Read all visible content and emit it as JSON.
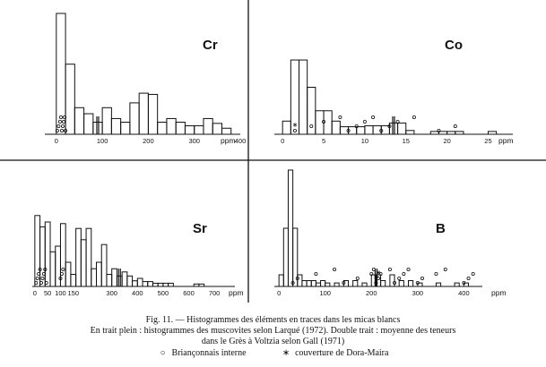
{
  "colors": {
    "ink": "#111111",
    "paper": "#ffffff"
  },
  "chart_data": [
    {
      "type": "histogram",
      "element": "Cr",
      "unit": "ppm",
      "xlim": [
        -25,
        400
      ],
      "ylim": [
        0,
        100
      ],
      "ticks": [
        0,
        100,
        200,
        300,
        400
      ],
      "bins": [
        [
          0,
          20,
          100
        ],
        [
          20,
          40,
          58
        ],
        [
          40,
          60,
          22
        ],
        [
          60,
          80,
          17
        ],
        [
          80,
          100,
          10
        ],
        [
          100,
          120,
          22
        ],
        [
          120,
          140,
          13
        ],
        [
          140,
          160,
          10
        ],
        [
          160,
          180,
          26
        ],
        [
          180,
          200,
          34
        ],
        [
          200,
          220,
          33
        ],
        [
          220,
          240,
          10
        ],
        [
          240,
          260,
          13
        ],
        [
          260,
          280,
          10
        ],
        [
          280,
          300,
          7
        ],
        [
          300,
          320,
          7
        ],
        [
          320,
          340,
          13
        ],
        [
          340,
          360,
          9
        ],
        [
          360,
          380,
          5
        ]
      ],
      "mean_line": 90,
      "brianconnais_points": [
        2,
        5,
        8,
        10,
        12,
        14,
        16,
        18,
        20
      ]
    },
    {
      "type": "histogram",
      "element": "Co",
      "unit": "ppm",
      "xlim": [
        -1,
        28
      ],
      "ylim": [
        0,
        100
      ],
      "ticks": [
        0,
        5,
        10,
        15,
        20,
        25
      ],
      "bins": [
        [
          0,
          1,
          14
        ],
        [
          1,
          2,
          79
        ],
        [
          2,
          3,
          79
        ],
        [
          3,
          4,
          50
        ],
        [
          4,
          5,
          25
        ],
        [
          5,
          6,
          25
        ],
        [
          6,
          7,
          14
        ],
        [
          7,
          8,
          8
        ],
        [
          8,
          9,
          8
        ],
        [
          9,
          10,
          8
        ],
        [
          10,
          11,
          9
        ],
        [
          11,
          12,
          9
        ],
        [
          12,
          13,
          9
        ],
        [
          13,
          14,
          12
        ],
        [
          14,
          15,
          12
        ],
        [
          15,
          16,
          4
        ],
        [
          18,
          19,
          3
        ],
        [
          19,
          20,
          3
        ],
        [
          20,
          21,
          3
        ],
        [
          21,
          22,
          3
        ],
        [
          25,
          26,
          3
        ]
      ],
      "mean_line": 13.5,
      "brianconnais_points": [
        1.5,
        3.5,
        5,
        7,
        8,
        9,
        10,
        11,
        12,
        13,
        14,
        16,
        19,
        21
      ],
      "dora_maira_points": [
        1.5
      ]
    },
    {
      "type": "histogram",
      "element": "Sr",
      "unit": "ppm",
      "xlim": [
        -10,
        780
      ],
      "ylim": [
        0,
        100
      ],
      "ticks": [
        0,
        50,
        100,
        150,
        300,
        400,
        500,
        600,
        700
      ],
      "tick_labels": [
        "0",
        "50",
        "100",
        "150",
        "300",
        "400",
        "500",
        "600",
        "700"
      ],
      "bins": [
        [
          0,
          20,
          88
        ],
        [
          20,
          40,
          74
        ],
        [
          40,
          60,
          80
        ],
        [
          60,
          80,
          43
        ],
        [
          80,
          100,
          50
        ],
        [
          100,
          120,
          78
        ],
        [
          120,
          140,
          30
        ],
        [
          140,
          160,
          15
        ],
        [
          160,
          180,
          72
        ],
        [
          180,
          200,
          58
        ],
        [
          200,
          220,
          72
        ],
        [
          220,
          240,
          22
        ],
        [
          240,
          260,
          30
        ],
        [
          260,
          280,
          52
        ],
        [
          280,
          300,
          15
        ],
        [
          300,
          320,
          22
        ],
        [
          320,
          340,
          13
        ],
        [
          340,
          360,
          18
        ],
        [
          360,
          380,
          13
        ],
        [
          380,
          400,
          7
        ],
        [
          400,
          420,
          10
        ],
        [
          420,
          440,
          6
        ],
        [
          440,
          460,
          6
        ],
        [
          460,
          480,
          4
        ],
        [
          480,
          500,
          4
        ],
        [
          500,
          520,
          4
        ],
        [
          520,
          540,
          4
        ],
        [
          620,
          640,
          3
        ],
        [
          640,
          660,
          3
        ]
      ],
      "mean_line": 330,
      "brianconnais_points": [
        5,
        10,
        15,
        20,
        25,
        30,
        35,
        40,
        45,
        100,
        105,
        110
      ]
    },
    {
      "type": "histogram",
      "element": "B",
      "unit": "ppm",
      "xlim": [
        -10,
        440
      ],
      "ylim": [
        0,
        100
      ],
      "ticks": [
        0,
        100,
        200,
        300,
        400
      ],
      "bins": [
        [
          0,
          10,
          10
        ],
        [
          10,
          20,
          50
        ],
        [
          20,
          30,
          100
        ],
        [
          30,
          40,
          50
        ],
        [
          40,
          50,
          10
        ],
        [
          50,
          60,
          5
        ],
        [
          60,
          70,
          5
        ],
        [
          70,
          80,
          5
        ],
        [
          80,
          90,
          3
        ],
        [
          90,
          100,
          5
        ],
        [
          100,
          110,
          3
        ],
        [
          120,
          130,
          3
        ],
        [
          140,
          150,
          5
        ],
        [
          160,
          170,
          5
        ],
        [
          180,
          190,
          3
        ],
        [
          200,
          210,
          10
        ],
        [
          210,
          220,
          10
        ],
        [
          220,
          230,
          5
        ],
        [
          240,
          250,
          10
        ],
        [
          260,
          270,
          5
        ],
        [
          280,
          290,
          5
        ],
        [
          300,
          310,
          3
        ],
        [
          340,
          350,
          3
        ],
        [
          380,
          390,
          3
        ],
        [
          400,
          410,
          3
        ]
      ],
      "mean_line": 210,
      "brianconnais_points": [
        30,
        40,
        80,
        120,
        140,
        170,
        200,
        205,
        210,
        215,
        220,
        240,
        250,
        260,
        270,
        280,
        300,
        310,
        340,
        360,
        400,
        410,
        420
      ],
      "dora_maira_points": [
        210,
        215
      ]
    }
  ],
  "caption": {
    "line1": "Fig. 11. — Histogrammes des éléments en traces dans les micas blancs",
    "line2": "En trait plein : histogrammes des muscovites selon Larqué (1972). Double trait : moyenne des teneurs",
    "line3": "dans le Grès à Voltzia selon Gall (1971)",
    "legend": [
      {
        "symbol": "○",
        "label": "Briançonnais interne"
      },
      {
        "symbol": "∗",
        "label": "couverture de Dora-Maira"
      }
    ]
  }
}
